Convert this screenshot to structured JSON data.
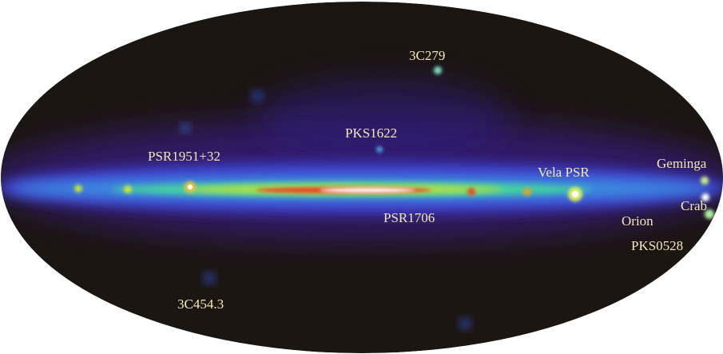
{
  "labels": [
    "3C279",
    "PKS1622",
    "PSR1951+32",
    "Vela PSR",
    "Geminga",
    "Crab",
    "Orion",
    "PKS0528",
    "PSR1706",
    "3C454.3"
  ]
}
